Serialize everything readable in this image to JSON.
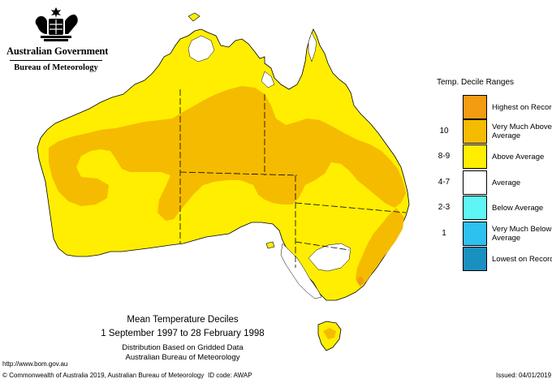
{
  "header": {
    "government": "Australian Government",
    "bureau": "Bureau of Meteorology"
  },
  "map": {
    "region": "Australia",
    "colors": {
      "highest": "#f39c12",
      "very_much_above": "#f5bb00",
      "above": "#ffee00",
      "average": "#ffffff",
      "below": "#5ef5f5",
      "very_much_below": "#2ec0f0",
      "lowest": "#1a90c0"
    }
  },
  "legend": {
    "title": "Temp. Decile Ranges",
    "items": [
      {
        "range": "",
        "label": "Highest on Record",
        "color": "#f39c12"
      },
      {
        "range": "10",
        "label": "Very Much Above Average",
        "color": "#f5bb00"
      },
      {
        "range": "8-9",
        "label": "Above Average",
        "color": "#ffee00"
      },
      {
        "range": "4-7",
        "label": "Average",
        "color": "#ffffff"
      },
      {
        "range": "2-3",
        "label": "Below Average",
        "color": "#5ef5f5"
      },
      {
        "range": "1",
        "label": "Very Much Below Average",
        "color": "#2ec0f0"
      },
      {
        "range": "",
        "label": "Lowest on Record",
        "color": "#1a90c0"
      }
    ]
  },
  "caption": {
    "title": "Mean Temperature Deciles",
    "period": "1 September 1997 to 28 February 1998",
    "note1": "Distribution Based on Gridded Data",
    "note2": "Australian Bureau of Meteorology"
  },
  "footer": {
    "url": "http://www.bom.gov.au",
    "copyright": "© Commonwealth of Australia 2019, Australian Bureau of Meteorology",
    "id_code": "ID code: AWAP",
    "issued": "Issued: 04/01/2019"
  }
}
